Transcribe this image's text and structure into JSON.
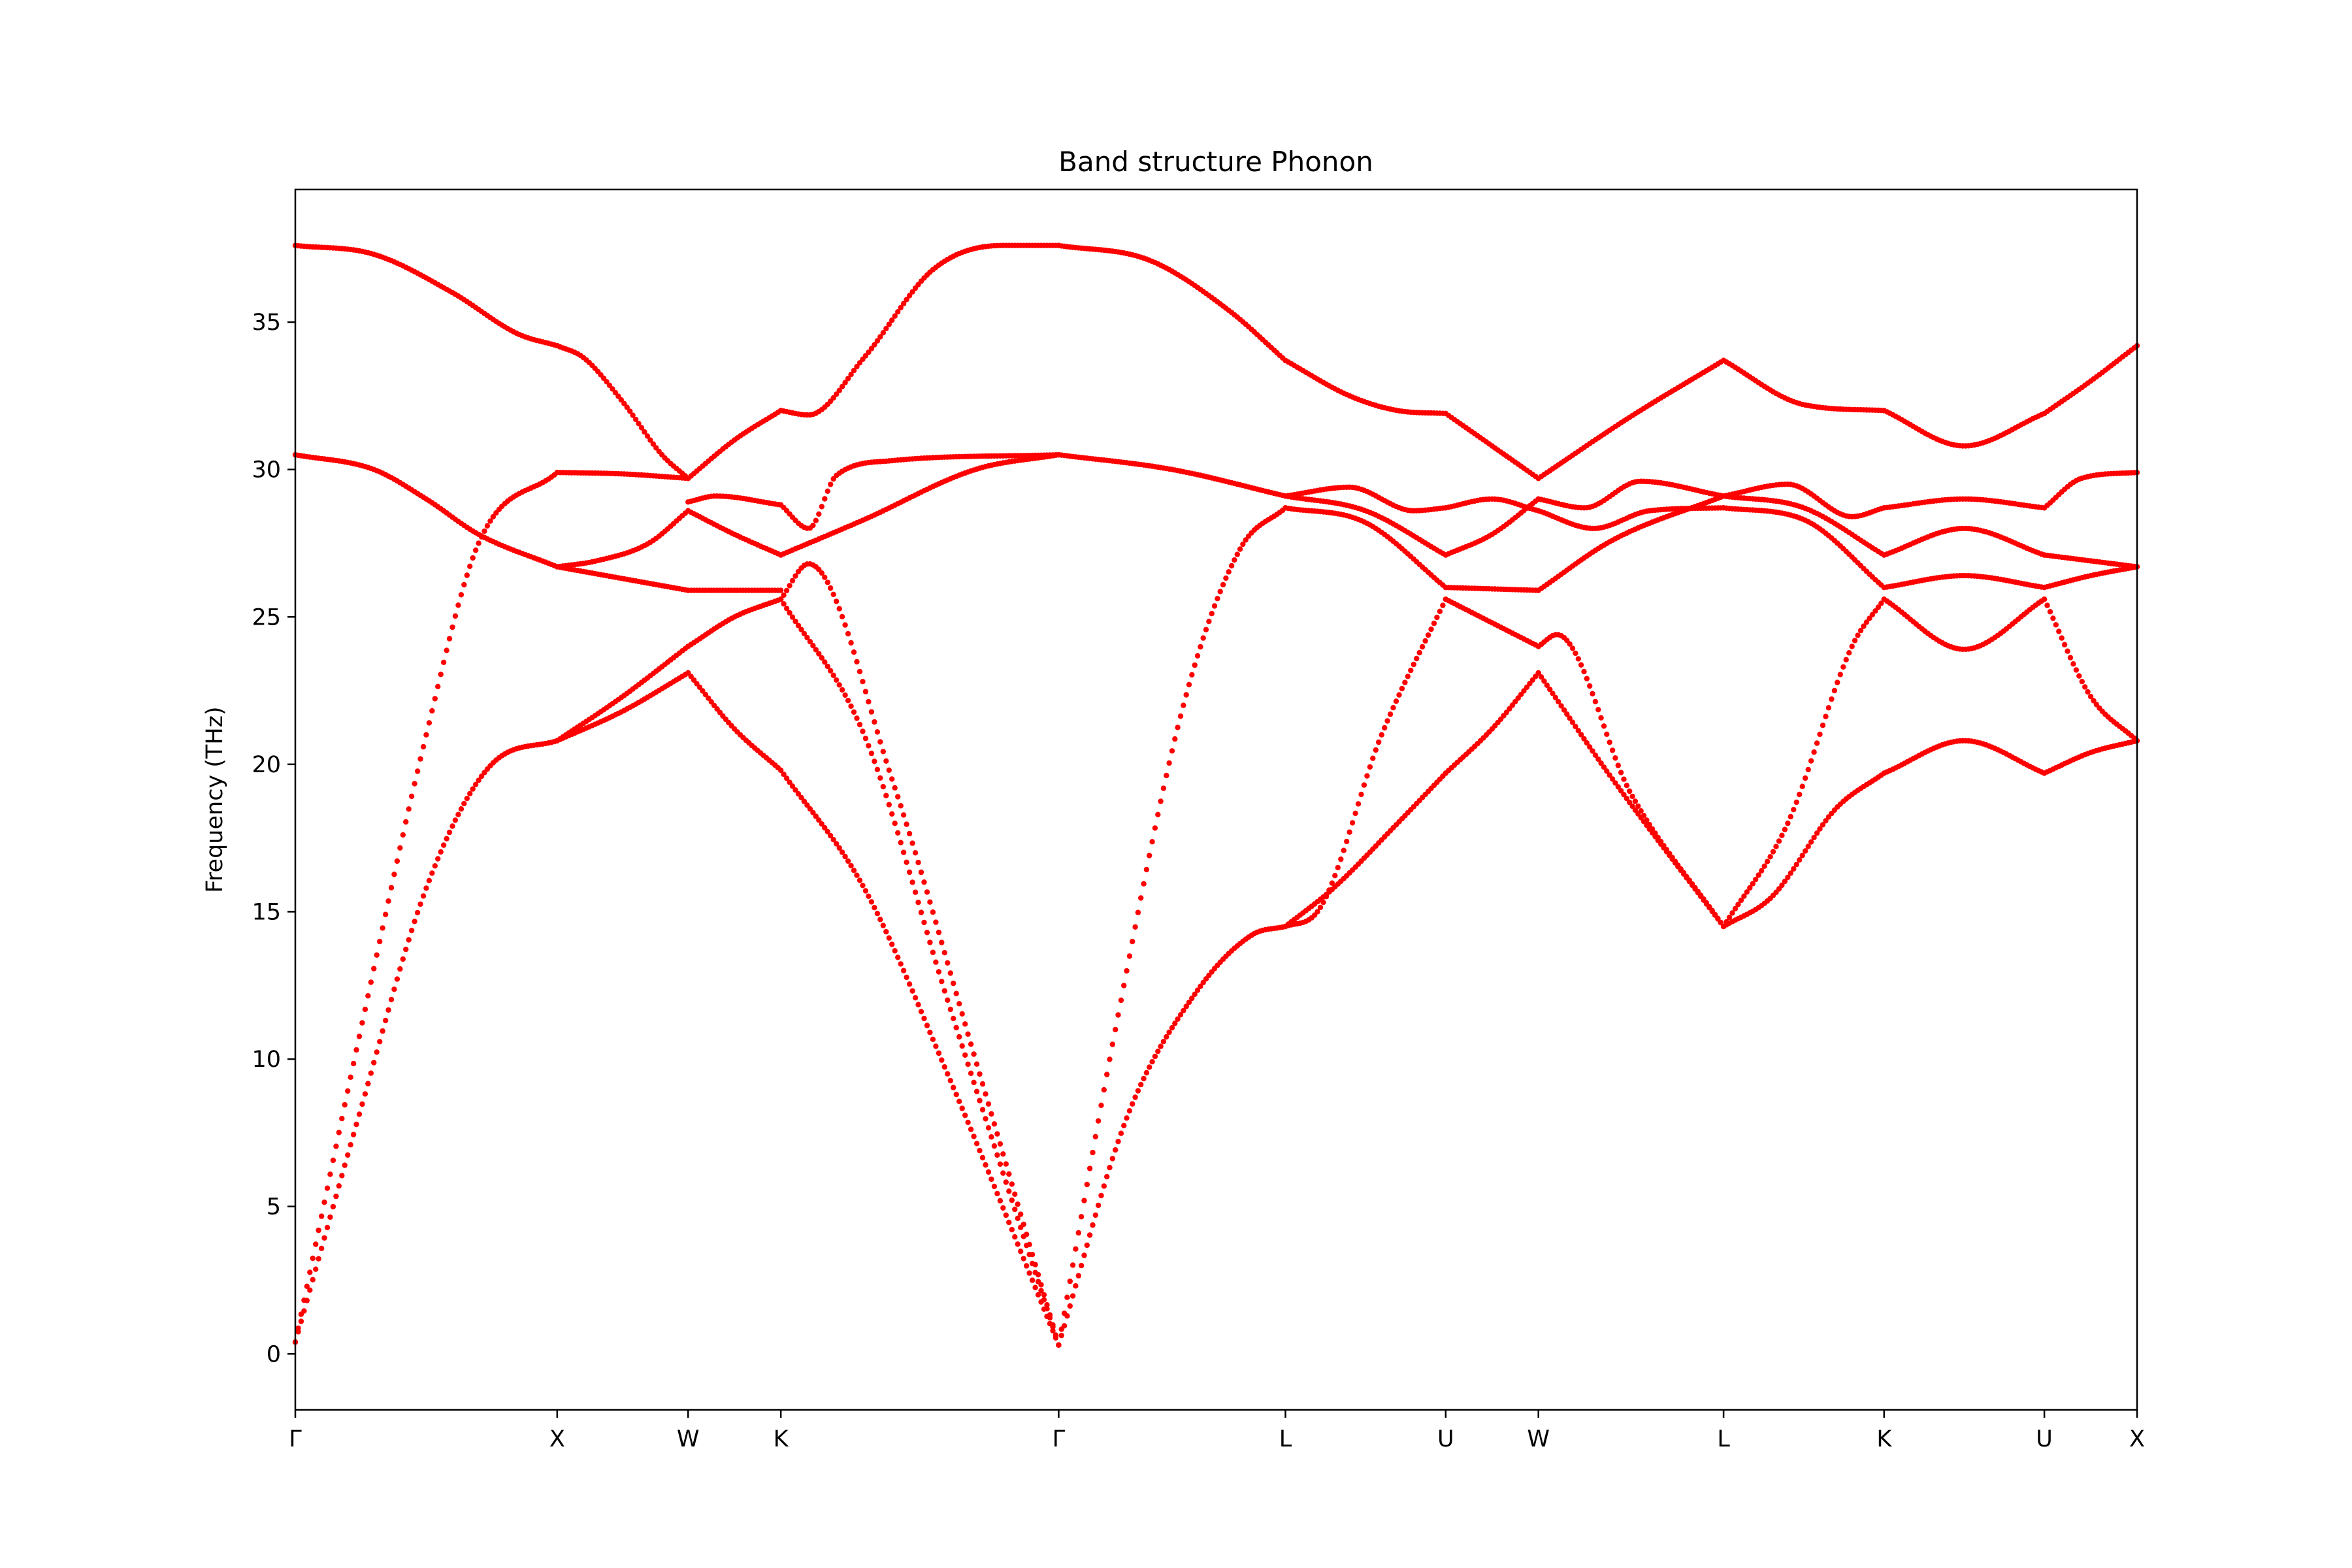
{
  "chart_data": {
    "type": "scatter",
    "title": "Band structure Phonon",
    "xlabel": "",
    "ylabel": "Frequency (THz)",
    "ylim": [
      -1.9,
      39.5
    ],
    "yticks": [
      0,
      5,
      10,
      15,
      20,
      25,
      30,
      35
    ],
    "grid": false,
    "legend": "none",
    "marker_color": "#ff0000",
    "high_symmetry_points": [
      {
        "label": "Γ",
        "x": 0.0
      },
      {
        "label": "X",
        "x": 1.0
      },
      {
        "label": "W",
        "x": 1.5
      },
      {
        "label": "K",
        "x": 1.854
      },
      {
        "label": "Γ",
        "x": 2.915
      },
      {
        "label": "L",
        "x": 3.781
      },
      {
        "label": "U",
        "x": 4.393
      },
      {
        "label": "W",
        "x": 4.747
      },
      {
        "label": "L",
        "x": 5.454
      },
      {
        "label": "K",
        "x": 6.067
      },
      {
        "label": "U",
        "x": 6.679
      },
      {
        "label": "X",
        "x": 7.033
      }
    ],
    "segments": [
      {
        "from": "Γ",
        "to": "X",
        "x0": 0.0,
        "x1": 1.0,
        "n": 90,
        "bands": [
          [
            [
              0,
              0.4
            ],
            [
              0.25,
              11
            ],
            [
              0.5,
              21
            ],
            [
              0.7,
              27.5
            ],
            [
              1,
              29.9
            ]
          ],
          [
            [
              0,
              0.4
            ],
            [
              0.25,
              8.3
            ],
            [
              0.5,
              15.8
            ],
            [
              0.75,
              20
            ],
            [
              1,
              20.8
            ]
          ],
          [
            [
              0,
              30.5
            ],
            [
              0.3,
              30
            ],
            [
              0.5,
              29
            ],
            [
              0.7,
              27.8
            ],
            [
              1,
              26.7
            ]
          ],
          [
            [
              0,
              37.6
            ],
            [
              0.3,
              37.3
            ],
            [
              0.6,
              36
            ],
            [
              0.85,
              34.6
            ],
            [
              1,
              34.2
            ]
          ]
        ]
      },
      {
        "from": "X",
        "to": "W",
        "x0": 1.0,
        "x1": 1.5,
        "n": 45,
        "bands": [
          [
            [
              0,
              34.2
            ],
            [
              0.2,
              33.8
            ],
            [
              0.5,
              32.3
            ],
            [
              0.8,
              30.5
            ],
            [
              1,
              29.7
            ]
          ],
          [
            [
              0,
              29.9
            ],
            [
              0.5,
              29.85
            ],
            [
              1,
              29.7
            ]
          ],
          [
            [
              0,
              26.7
            ],
            [
              0.3,
              26.9
            ],
            [
              0.7,
              27.5
            ],
            [
              1,
              28.6
            ]
          ],
          [
            [
              0,
              26.7
            ],
            [
              0.5,
              26.3
            ],
            [
              1,
              25.9
            ]
          ],
          [
            [
              0,
              20.8
            ],
            [
              0.5,
              22.3
            ],
            [
              1,
              24
            ]
          ],
          [
            [
              0,
              20.8
            ],
            [
              0.5,
              21.8
            ],
            [
              1,
              23.1
            ]
          ]
        ]
      },
      {
        "from": "W",
        "to": "K",
        "x0": 1.5,
        "x1": 1.854,
        "n": 32,
        "bands": [
          [
            [
              0,
              29.7
            ],
            [
              0.5,
              31
            ],
            [
              1,
              32
            ]
          ],
          [
            [
              0,
              28.6
            ],
            [
              0.5,
              27.8
            ],
            [
              1,
              27.1
            ]
          ],
          [
            [
              0,
              28.9
            ],
            [
              0.3,
              29.1
            ],
            [
              1,
              28.8
            ]
          ],
          [
            [
              0,
              25.9
            ],
            [
              1,
              25.9
            ]
          ],
          [
            [
              0,
              24
            ],
            [
              0.5,
              25
            ],
            [
              1,
              25.6
            ]
          ],
          [
            [
              0,
              23.1
            ],
            [
              0.5,
              21.2
            ],
            [
              1,
              19.8
            ]
          ]
        ]
      },
      {
        "from": "K",
        "to": "Γ",
        "x0": 1.854,
        "x1": 2.915,
        "n": 95,
        "bands": [
          [
            [
              0,
              32
            ],
            [
              0.1,
              31.85
            ],
            [
              0.3,
              33.8
            ],
            [
              0.55,
              36.8
            ],
            [
              0.8,
              37.6
            ],
            [
              1,
              37.6
            ]
          ],
          [
            [
              0,
              28.8
            ],
            [
              0.1,
              28
            ],
            [
              0.2,
              29.8
            ],
            [
              0.4,
              30.3
            ],
            [
              1,
              30.5
            ]
          ],
          [
            [
              0,
              27.1
            ],
            [
              0.3,
              28.3
            ],
            [
              0.7,
              30
            ],
            [
              1,
              30.5
            ]
          ],
          [
            [
              0,
              25.6
            ],
            [
              0.1,
              26.8
            ],
            [
              0.4,
              19.5
            ],
            [
              0.7,
              10
            ],
            [
              1,
              0.3
            ]
          ],
          [
            [
              0,
              25.6
            ],
            [
              0.3,
              21
            ],
            [
              0.6,
              12
            ],
            [
              1,
              0.3
            ]
          ],
          [
            [
              0,
              19.8
            ],
            [
              0.3,
              15.8
            ],
            [
              0.6,
              9.5
            ],
            [
              1,
              0.3
            ]
          ]
        ]
      },
      {
        "from": "Γ",
        "to": "L",
        "x0": 2.915,
        "x1": 3.781,
        "n": 80,
        "bands": [
          [
            [
              0,
              37.6
            ],
            [
              0.4,
              37.1
            ],
            [
              0.75,
              35.4
            ],
            [
              1,
              33.7
            ]
          ],
          [
            [
              0,
              30.5
            ],
            [
              0.5,
              30
            ],
            [
              1,
              29.1
            ]
          ],
          [
            [
              0,
              0.3
            ],
            [
              0.25,
              11
            ],
            [
              0.55,
              22
            ],
            [
              0.8,
              27.3
            ],
            [
              1,
              28.7
            ]
          ],
          [
            [
              0,
              0.3
            ],
            [
              0.3,
              8
            ],
            [
              0.6,
              12.2
            ],
            [
              0.85,
              14.2
            ],
            [
              1,
              14.5
            ]
          ]
        ]
      },
      {
        "from": "L",
        "to": "U",
        "x0": 3.781,
        "x1": 4.393,
        "n": 55,
        "bands": [
          [
            [
              0,
              33.7
            ],
            [
              0.4,
              32.5
            ],
            [
              0.7,
              32
            ],
            [
              1,
              31.9
            ]
          ],
          [
            [
              0,
              29.1
            ],
            [
              0.4,
              29.4
            ],
            [
              0.8,
              28.6
            ],
            [
              1,
              28.7
            ]
          ],
          [
            [
              0,
              29.1
            ],
            [
              0.5,
              28.6
            ],
            [
              1,
              27.1
            ]
          ],
          [
            [
              0,
              28.7
            ],
            [
              0.5,
              28.2
            ],
            [
              1,
              26
            ]
          ],
          [
            [
              0,
              14.5
            ],
            [
              0.2,
              15
            ],
            [
              0.6,
              21
            ],
            [
              1,
              25.6
            ]
          ],
          [
            [
              0,
              14.5
            ],
            [
              0.3,
              15.8
            ],
            [
              0.7,
              18
            ],
            [
              1,
              19.7
            ]
          ]
        ]
      },
      {
        "from": "U",
        "to": "W",
        "x0": 4.393,
        "x1": 4.747,
        "n": 32,
        "bands": [
          [
            [
              0,
              31.9
            ],
            [
              0.5,
              30.8
            ],
            [
              1,
              29.7
            ]
          ],
          [
            [
              0,
              28.7
            ],
            [
              0.5,
              29
            ],
            [
              1,
              28.6
            ]
          ],
          [
            [
              0,
              27.1
            ],
            [
              0.5,
              27.8
            ],
            [
              1,
              29
            ]
          ],
          [
            [
              0,
              26
            ],
            [
              1,
              25.9
            ]
          ],
          [
            [
              0,
              25.6
            ],
            [
              0.5,
              24.8
            ],
            [
              1,
              24
            ]
          ],
          [
            [
              0,
              19.7
            ],
            [
              0.5,
              21.2
            ],
            [
              1,
              23.1
            ]
          ]
        ]
      },
      {
        "from": "W",
        "to": "L",
        "x0": 4.747,
        "x1": 5.454,
        "n": 65,
        "bands": [
          [
            [
              0,
              29.7
            ],
            [
              0.5,
              31.8
            ],
            [
              1,
              33.7
            ]
          ],
          [
            [
              0,
              29
            ],
            [
              0.25,
              28.7
            ],
            [
              0.55,
              29.6
            ],
            [
              1,
              29.1
            ]
          ],
          [
            [
              0,
              28.6
            ],
            [
              0.3,
              28
            ],
            [
              0.6,
              28.6
            ],
            [
              1,
              28.7
            ]
          ],
          [
            [
              0,
              25.9
            ],
            [
              0.4,
              27.6
            ],
            [
              1,
              29.1
            ]
          ],
          [
            [
              0,
              24
            ],
            [
              0.1,
              24.4
            ],
            [
              0.5,
              19
            ],
            [
              1,
              14.5
            ]
          ],
          [
            [
              0,
              23.1
            ],
            [
              0.4,
              19.5
            ],
            [
              1,
              14.5
            ]
          ]
        ]
      },
      {
        "from": "L",
        "to": "K",
        "x0": 5.454,
        "x1": 6.067,
        "n": 55,
        "bands": [
          [
            [
              0,
              33.7
            ],
            [
              0.5,
              32.2
            ],
            [
              1,
              32
            ]
          ],
          [
            [
              0,
              29.1
            ],
            [
              0.4,
              29.5
            ],
            [
              0.8,
              28.4
            ],
            [
              1,
              28.7
            ]
          ],
          [
            [
              0,
              29.1
            ],
            [
              0.5,
              28.7
            ],
            [
              1,
              27.1
            ]
          ],
          [
            [
              0,
              28.7
            ],
            [
              0.5,
              28.3
            ],
            [
              1,
              26
            ]
          ],
          [
            [
              0,
              14.5
            ],
            [
              0.4,
              18
            ],
            [
              0.8,
              24
            ],
            [
              1,
              25.6
            ]
          ],
          [
            [
              0,
              14.5
            ],
            [
              0.3,
              15.5
            ],
            [
              0.7,
              18.5
            ],
            [
              1,
              19.7
            ]
          ]
        ]
      },
      {
        "from": "K",
        "to": "U",
        "x0": 6.067,
        "x1": 6.679,
        "n": 55,
        "bands": [
          [
            [
              0,
              32
            ],
            [
              0.5,
              30.8
            ],
            [
              1,
              31.9
            ]
          ],
          [
            [
              0,
              28.7
            ],
            [
              0.5,
              29
            ],
            [
              1,
              28.7
            ]
          ],
          [
            [
              0,
              27.1
            ],
            [
              0.5,
              28
            ],
            [
              1,
              27.1
            ]
          ],
          [
            [
              0,
              26
            ],
            [
              0.5,
              26.4
            ],
            [
              1,
              26
            ]
          ],
          [
            [
              0,
              25.6
            ],
            [
              0.5,
              23.9
            ],
            [
              1,
              25.6
            ]
          ],
          [
            [
              0,
              19.7
            ],
            [
              0.5,
              20.8
            ],
            [
              1,
              19.7
            ]
          ]
        ]
      },
      {
        "from": "U",
        "to": "X",
        "x0": 6.679,
        "x1": 7.033,
        "n": 32,
        "bands": [
          [
            [
              0,
              31.9
            ],
            [
              0.5,
              33
            ],
            [
              1,
              34.2
            ]
          ],
          [
            [
              0,
              28.7
            ],
            [
              0.4,
              29.7
            ],
            [
              1,
              29.9
            ]
          ],
          [
            [
              0,
              27.1
            ],
            [
              0.5,
              26.9
            ],
            [
              1,
              26.7
            ]
          ],
          [
            [
              0,
              26
            ],
            [
              0.5,
              26.4
            ],
            [
              1,
              26.7
            ]
          ],
          [
            [
              0,
              25.6
            ],
            [
              0.5,
              22.3
            ],
            [
              1,
              20.8
            ]
          ],
          [
            [
              0,
              19.7
            ],
            [
              0.5,
              20.4
            ],
            [
              1,
              20.8
            ]
          ]
        ]
      }
    ]
  }
}
